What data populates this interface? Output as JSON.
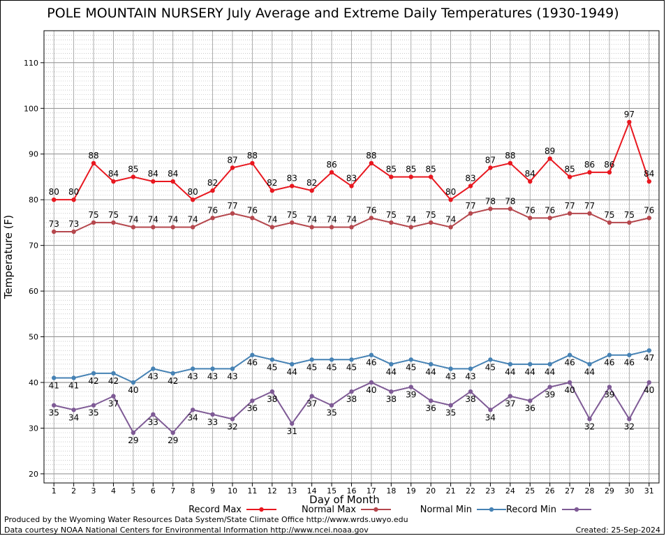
{
  "chart_data": {
    "type": "line",
    "title": "POLE MOUNTAIN NURSERY July Average and Extreme Daily Temperatures (1930-1949)",
    "xlabel": "Day of Month",
    "ylabel": "Temperature (F)",
    "ylim": [
      18,
      117
    ],
    "yticks": [
      20,
      30,
      40,
      50,
      60,
      70,
      80,
      90,
      100,
      110
    ],
    "grid": true,
    "legend_position": "bottom",
    "x": [
      1,
      2,
      3,
      4,
      5,
      6,
      7,
      8,
      9,
      10,
      11,
      12,
      13,
      14,
      15,
      16,
      17,
      18,
      19,
      20,
      21,
      22,
      23,
      24,
      25,
      26,
      27,
      28,
      29,
      30,
      31
    ],
    "series": [
      {
        "name": "Record Max",
        "color": "#e8171f",
        "label_side": "above",
        "values": [
          80,
          80,
          88,
          84,
          85,
          84,
          84,
          80,
          82,
          87,
          88,
          82,
          83,
          82,
          86,
          83,
          88,
          85,
          85,
          85,
          80,
          83,
          87,
          88,
          84,
          89,
          85,
          86,
          86,
          97,
          84
        ]
      },
      {
        "name": "Normal Max",
        "color": "#b5474d",
        "label_side": "above",
        "values": [
          73,
          73,
          75,
          75,
          74,
          74,
          74,
          74,
          76,
          77,
          76,
          74,
          75,
          74,
          74,
          74,
          76,
          75,
          74,
          75,
          74,
          77,
          78,
          78,
          76,
          76,
          77,
          77,
          75,
          75,
          76
        ]
      },
      {
        "name": "Normal Min",
        "color": "#4682b4",
        "label_side": "below",
        "values": [
          41,
          41,
          42,
          42,
          40,
          43,
          42,
          43,
          43,
          43,
          46,
          45,
          44,
          45,
          45,
          45,
          46,
          44,
          45,
          44,
          43,
          43,
          45,
          44,
          44,
          44,
          46,
          44,
          46,
          46,
          47
        ]
      },
      {
        "name": "Record Min",
        "color": "#7e5a95",
        "label_side": "below",
        "values": [
          35,
          34,
          35,
          37,
          29,
          33,
          29,
          34,
          33,
          32,
          36,
          38,
          31,
          37,
          35,
          38,
          40,
          38,
          39,
          36,
          35,
          38,
          34,
          37,
          36,
          39,
          40,
          32,
          39,
          32,
          40
        ]
      }
    ]
  },
  "footer": {
    "line1": "Produced by the Wyoming Water Resources Data System/State Climate Office http://www.wrds.uwyo.edu",
    "line2": "Data courtesy NOAA National Centers for Environmental Information http://www.ncei.noaa.gov",
    "created": "Created:  25-Sep-2024"
  }
}
